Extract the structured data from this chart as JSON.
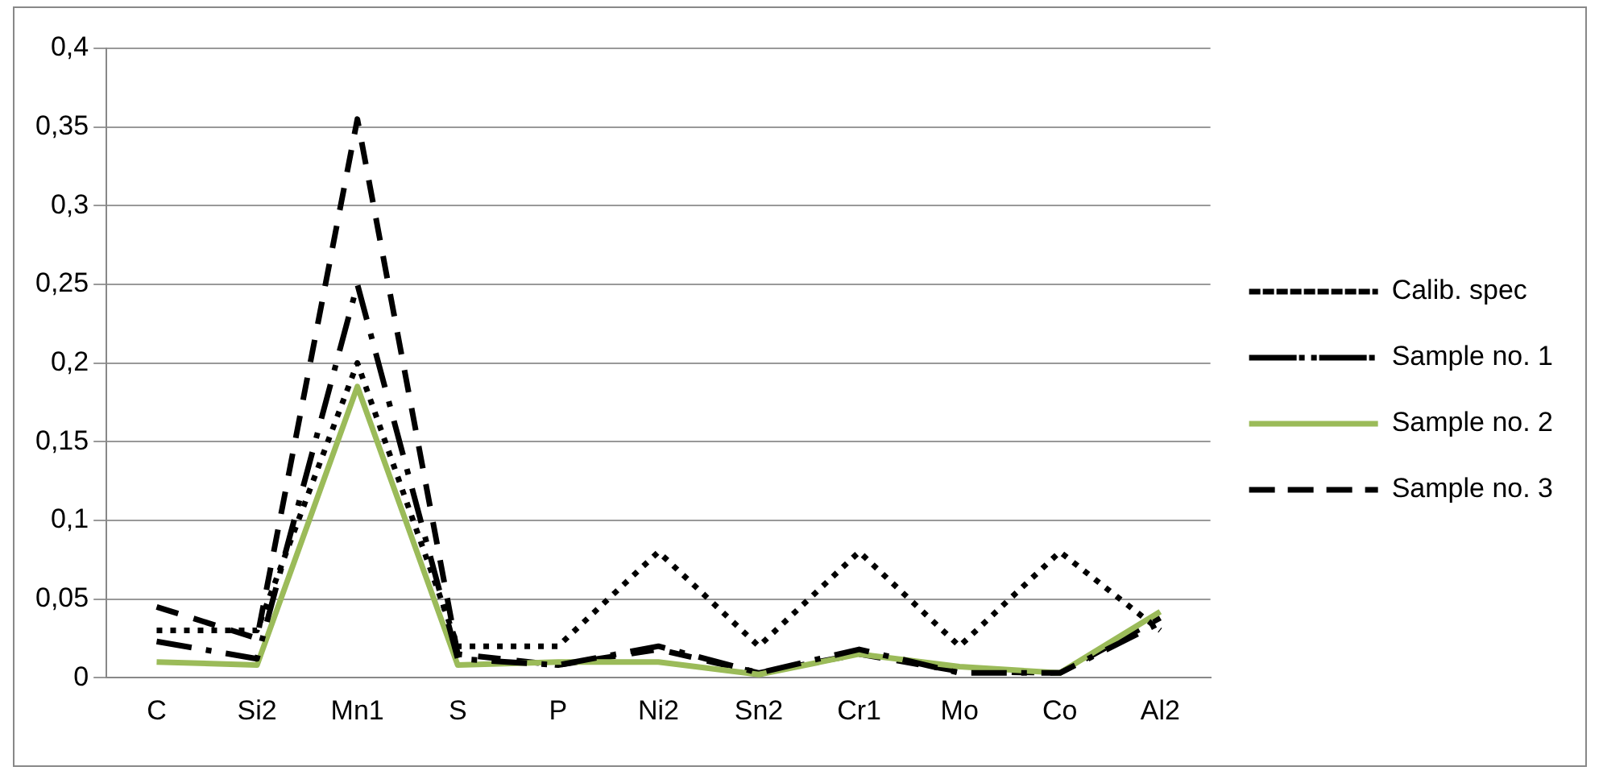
{
  "chart_data": {
    "type": "line",
    "categories": [
      "C",
      "Si2",
      "Mn1",
      "S",
      "P",
      "Ni2",
      "Sn2",
      "Cr1",
      "Mo",
      "Co",
      "Al2"
    ],
    "ylim": [
      0,
      0.4
    ],
    "yticks": [
      0,
      {
        "value": 0.05,
        "label": "0,05"
      },
      {
        "value": 0.1,
        "label": "0,1"
      },
      {
        "value": 0.15,
        "label": "0,15"
      },
      {
        "value": 0.2,
        "label": "0,2"
      },
      {
        "value": 0.25,
        "label": "0,25"
      },
      {
        "value": 0.3,
        "label": "0,3"
      },
      {
        "value": 0.35,
        "label": "0,35"
      },
      {
        "value": 0.4,
        "label": "0,4"
      }
    ],
    "grid": "y",
    "legend": "right",
    "marker": "none",
    "series": [
      {
        "name": "Calib. spec",
        "color": "#000000",
        "line_style": "dotted",
        "values": [
          0.03,
          0.03,
          0.2,
          0.02,
          0.02,
          0.08,
          0.02,
          0.08,
          0.02,
          0.08,
          0.03
        ]
      },
      {
        "name": "Sample no. 1",
        "color": "#000000",
        "line_style": "dashdot",
        "values": [
          0.023,
          0.012,
          0.25,
          0.012,
          0.008,
          0.02,
          0.003,
          0.018,
          0.003,
          0.003,
          0.035
        ]
      },
      {
        "name": "Sample no. 2",
        "color": "#9bbb59",
        "line_style": "solid",
        "values": [
          0.01,
          0.008,
          0.185,
          0.008,
          0.01,
          0.01,
          0.002,
          0.015,
          0.007,
          0.003,
          0.042
        ]
      },
      {
        "name": "Sample no. 3",
        "color": "#000000",
        "line_style": "dashed",
        "values": [
          0.045,
          0.025,
          0.355,
          0.015,
          0.008,
          0.018,
          0.003,
          0.015,
          0.004,
          0.003,
          0.038
        ]
      }
    ]
  }
}
